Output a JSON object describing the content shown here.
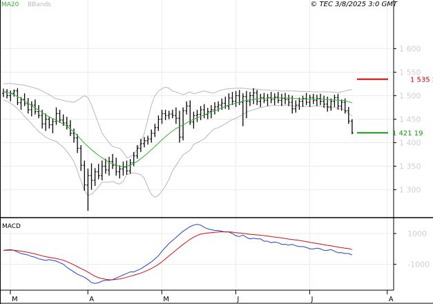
{
  "legend": {
    "ma": "MA20",
    "bbands": "BBands",
    "ma_color": "#2db52d",
    "bbands_color": "#b8b8b8"
  },
  "timestamp": "© TEC 3/8/2025 3:0 GMT",
  "resistance": {
    "label": "1 535 2",
    "value": 1535,
    "color": "#d00000"
  },
  "support": {
    "label": "1 421 19",
    "value": 1421,
    "color": "#119911"
  },
  "macd_title": "MACD",
  "chart_data": [
    {
      "type": "line",
      "panel": "price",
      "ylim": [
        1245,
        1680
      ],
      "yticks": [
        1300,
        1350,
        1400,
        1450,
        1500,
        1550,
        1600
      ],
      "ytick_labels": [
        "1 300",
        "1 350",
        "1 400",
        "1 450",
        "1 500",
        "1 550",
        "1 600"
      ],
      "xticks": [
        {
          "label": "M",
          "index": 0
        },
        {
          "label": "A",
          "index": 22
        },
        {
          "label": "M",
          "index": 43
        },
        {
          "label": "J",
          "index": 64
        },
        {
          "label": "J",
          "index": 85
        },
        {
          "label": "A",
          "index": 107
        }
      ],
      "ohlc": [
        [
          1505,
          1515,
          1497,
          1508
        ],
        [
          1508,
          1514,
          1494,
          1500
        ],
        [
          1500,
          1511,
          1488,
          1505
        ],
        [
          1505,
          1513,
          1498,
          1510
        ],
        [
          1510,
          1516,
          1480,
          1485
        ],
        [
          1485,
          1497,
          1470,
          1492
        ],
        [
          1492,
          1505,
          1478,
          1483
        ],
        [
          1483,
          1495,
          1462,
          1470
        ],
        [
          1470,
          1488,
          1456,
          1480
        ],
        [
          1480,
          1492,
          1460,
          1466
        ],
        [
          1466,
          1480,
          1452,
          1458
        ],
        [
          1458,
          1470,
          1430,
          1440
        ],
        [
          1440,
          1462,
          1425,
          1450
        ],
        [
          1450,
          1456,
          1430,
          1438
        ],
        [
          1438,
          1452,
          1420,
          1445
        ],
        [
          1445,
          1475,
          1438,
          1462
        ],
        [
          1462,
          1470,
          1442,
          1448
        ],
        [
          1448,
          1460,
          1436,
          1442
        ],
        [
          1442,
          1455,
          1428,
          1436
        ],
        [
          1436,
          1448,
          1414,
          1420
        ],
        [
          1420,
          1430,
          1400,
          1410
        ],
        [
          1410,
          1418,
          1378,
          1388
        ],
        [
          1388,
          1395,
          1340,
          1352
        ],
        [
          1352,
          1362,
          1298,
          1310
        ],
        [
          1310,
          1345,
          1255,
          1330
        ],
        [
          1330,
          1356,
          1300,
          1320
        ],
        [
          1320,
          1346,
          1308,
          1338
        ],
        [
          1338,
          1355,
          1322,
          1330
        ],
        [
          1330,
          1362,
          1320,
          1350
        ],
        [
          1350,
          1366,
          1334,
          1342
        ],
        [
          1342,
          1370,
          1330,
          1360
        ],
        [
          1360,
          1376,
          1344,
          1352
        ],
        [
          1352,
          1368,
          1330,
          1338
        ],
        [
          1338,
          1352,
          1324,
          1344
        ],
        [
          1344,
          1360,
          1330,
          1348
        ],
        [
          1348,
          1362,
          1332,
          1340
        ],
        [
          1340,
          1365,
          1334,
          1357
        ],
        [
          1357,
          1380,
          1350,
          1372
        ],
        [
          1372,
          1395,
          1366,
          1388
        ],
        [
          1388,
          1408,
          1380,
          1398
        ],
        [
          1398,
          1412,
          1390,
          1404
        ],
        [
          1404,
          1415,
          1396,
          1408
        ],
        [
          1408,
          1428,
          1400,
          1420
        ],
        [
          1420,
          1440,
          1412,
          1432
        ],
        [
          1432,
          1458,
          1425,
          1450
        ],
        [
          1450,
          1470,
          1440,
          1462
        ],
        [
          1462,
          1470,
          1448,
          1458
        ],
        [
          1458,
          1468,
          1450,
          1461
        ],
        [
          1461,
          1470,
          1452,
          1458
        ],
        [
          1458,
          1475,
          1440,
          1452
        ],
        [
          1452,
          1468,
          1400,
          1412
        ],
        [
          1412,
          1475,
          1405,
          1468
        ],
        [
          1468,
          1488,
          1460,
          1478
        ],
        [
          1478,
          1490,
          1438,
          1444
        ],
        [
          1444,
          1466,
          1430,
          1458
        ],
        [
          1458,
          1470,
          1444,
          1460
        ],
        [
          1460,
          1478,
          1448,
          1470
        ],
        [
          1470,
          1482,
          1452,
          1460
        ],
        [
          1460,
          1474,
          1450,
          1466
        ],
        [
          1466,
          1480,
          1452,
          1470
        ],
        [
          1470,
          1486,
          1460,
          1476
        ],
        [
          1476,
          1488,
          1466,
          1480
        ],
        [
          1480,
          1494,
          1470,
          1484
        ],
        [
          1484,
          1498,
          1472,
          1478
        ],
        [
          1478,
          1505,
          1470,
          1495
        ],
        [
          1495,
          1508,
          1480,
          1488
        ],
        [
          1488,
          1510,
          1476,
          1500
        ],
        [
          1500,
          1512,
          1480,
          1486
        ],
        [
          1486,
          1505,
          1435,
          1498
        ],
        [
          1498,
          1510,
          1452,
          1488
        ],
        [
          1488,
          1508,
          1478,
          1500
        ],
        [
          1500,
          1516,
          1482,
          1506
        ],
        [
          1506,
          1512,
          1480,
          1488
        ],
        [
          1488,
          1504,
          1476,
          1496
        ],
        [
          1496,
          1506,
          1484,
          1490
        ],
        [
          1490,
          1504,
          1478,
          1496
        ],
        [
          1496,
          1508,
          1484,
          1492
        ],
        [
          1492,
          1505,
          1480,
          1497
        ],
        [
          1497,
          1508,
          1484,
          1490
        ],
        [
          1490,
          1504,
          1478,
          1494
        ],
        [
          1494,
          1506,
          1482,
          1492
        ],
        [
          1492,
          1502,
          1478,
          1486
        ],
        [
          1486,
          1500,
          1462,
          1472
        ],
        [
          1472,
          1490,
          1464,
          1480
        ],
        [
          1480,
          1496,
          1470,
          1488
        ],
        [
          1488,
          1500,
          1476,
          1494
        ],
        [
          1494,
          1506,
          1480,
          1486
        ],
        [
          1486,
          1502,
          1476,
          1496
        ],
        [
          1496,
          1504,
          1482,
          1490
        ],
        [
          1490,
          1502,
          1478,
          1494
        ],
        [
          1494,
          1504,
          1480,
          1488
        ],
        [
          1488,
          1500,
          1474,
          1482
        ],
        [
          1482,
          1498,
          1466,
          1476
        ],
        [
          1476,
          1494,
          1468,
          1488
        ],
        [
          1488,
          1502,
          1476,
          1496
        ],
        [
          1496,
          1504,
          1470,
          1478
        ],
        [
          1478,
          1492,
          1468,
          1486
        ],
        [
          1486,
          1494,
          1462,
          1468
        ],
        [
          1468,
          1476,
          1440,
          1446
        ],
        [
          1446,
          1450,
          1418,
          1421
        ]
      ],
      "ma20": [
        1508,
        1507,
        1505,
        1502,
        1498,
        1494,
        1489,
        1484,
        1479,
        1474,
        1469,
        1464,
        1459,
        1455,
        1451,
        1448,
        1444,
        1440,
        1435,
        1429,
        1423,
        1415,
        1407,
        1399,
        1392,
        1385,
        1379,
        1373,
        1368,
        1363,
        1358,
        1355,
        1352,
        1350,
        1349,
        1350,
        1352,
        1356,
        1360,
        1366,
        1372,
        1378,
        1385,
        1392,
        1399,
        1406,
        1413,
        1419,
        1425,
        1430,
        1434,
        1438,
        1442,
        1446,
        1450,
        1453,
        1456,
        1459,
        1462,
        1465,
        1468,
        1471,
        1474,
        1477,
        1480,
        1482,
        1484,
        1486,
        1488,
        1490,
        1491,
        1492,
        1493,
        1494,
        1494,
        1495,
        1495,
        1495,
        1495,
        1495,
        1495,
        1495,
        1494,
        1494,
        1493,
        1493,
        1493,
        1493,
        1493,
        1493,
        1493,
        1492,
        1492,
        1491,
        1491,
        1490,
        1490,
        1489,
        1487,
        1485
      ],
      "bb_upper": [
        1525,
        1526,
        1526,
        1525,
        1524,
        1523,
        1522,
        1520,
        1518,
        1516,
        1514,
        1510,
        1506,
        1502,
        1497,
        1493,
        1492,
        1490,
        1488,
        1487,
        1486,
        1490,
        1495,
        1500,
        1496,
        1480,
        1460,
        1440,
        1420,
        1410,
        1400,
        1392,
        1390,
        1388,
        1380,
        1368,
        1370,
        1376,
        1386,
        1400,
        1420,
        1450,
        1480,
        1500,
        1510,
        1515,
        1518,
        1516,
        1510,
        1508,
        1505,
        1502,
        1505,
        1508,
        1504,
        1506,
        1508,
        1510,
        1508,
        1506,
        1506,
        1510,
        1512,
        1514,
        1515,
        1515,
        1516,
        1516,
        1516,
        1515,
        1514,
        1514,
        1514,
        1513,
        1512,
        1512,
        1511,
        1511,
        1511,
        1510,
        1510,
        1510,
        1510,
        1510,
        1509,
        1509,
        1509,
        1509,
        1508,
        1508,
        1508,
        1508,
        1508,
        1508,
        1507,
        1507,
        1508,
        1510,
        1512,
        1513
      ],
      "bb_lower": [
        1491,
        1488,
        1484,
        1479,
        1472,
        1465,
        1456,
        1448,
        1440,
        1432,
        1424,
        1418,
        1412,
        1408,
        1405,
        1403,
        1396,
        1390,
        1382,
        1371,
        1360,
        1340,
        1319,
        1298,
        1288,
        1290,
        1298,
        1306,
        1316,
        1316,
        1316,
        1318,
        1314,
        1312,
        1318,
        1332,
        1334,
        1336,
        1334,
        1332,
        1324,
        1306,
        1290,
        1284,
        1288,
        1297,
        1308,
        1322,
        1340,
        1352,
        1363,
        1374,
        1379,
        1384,
        1396,
        1400,
        1404,
        1408,
        1416,
        1424,
        1430,
        1432,
        1436,
        1440,
        1445,
        1449,
        1452,
        1456,
        1460,
        1465,
        1468,
        1470,
        1472,
        1475,
        1476,
        1478,
        1479,
        1479,
        1479,
        1480,
        1480,
        1480,
        1478,
        1478,
        1477,
        1477,
        1477,
        1477,
        1478,
        1478,
        1478,
        1476,
        1476,
        1474,
        1475,
        1473,
        1472,
        1468,
        1462,
        1457
      ]
    },
    {
      "type": "line",
      "panel": "macd",
      "ylim": [
        -2600,
        1900
      ],
      "yticks": [
        1000,
        -1000
      ],
      "ytick_labels": [
        "1000",
        "-1000"
      ],
      "series": [
        {
          "name": "macd",
          "color": "#1f3fd0",
          "values": [
            -100,
            -60,
            -50,
            -100,
            -200,
            -300,
            -350,
            -400,
            -500,
            -550,
            -650,
            -700,
            -750,
            -700,
            -750,
            -800,
            -900,
            -1000,
            -1200,
            -1350,
            -1500,
            -1650,
            -1750,
            -1850,
            -2000,
            -2200,
            -2250,
            -2200,
            -2100,
            -2050,
            -2050,
            -2000,
            -1900,
            -1800,
            -1700,
            -1600,
            -1500,
            -1500,
            -1400,
            -1300,
            -1150,
            -1000,
            -850,
            -650,
            -450,
            -150,
            100,
            350,
            550,
            750,
            950,
            1150,
            1300,
            1450,
            1550,
            1600,
            1550,
            1400,
            1300,
            1250,
            1200,
            1200,
            1150,
            1100,
            1100,
            1000,
            850,
            800,
            900,
            750,
            650,
            700,
            650,
            650,
            500,
            500,
            400,
            450,
            400,
            300,
            300,
            250,
            300,
            200,
            150,
            150,
            100,
            0,
            0,
            50,
            0,
            -100,
            -100,
            -50,
            -150,
            -250,
            -250,
            -300,
            -300,
            -400
          ]
        },
        {
          "name": "signal",
          "color": "#cc1111",
          "values": [
            -100,
            -90,
            -80,
            -90,
            -110,
            -150,
            -190,
            -230,
            -280,
            -330,
            -390,
            -450,
            -510,
            -550,
            -590,
            -630,
            -680,
            -740,
            -830,
            -930,
            -1040,
            -1160,
            -1280,
            -1390,
            -1510,
            -1650,
            -1780,
            -1880,
            -1940,
            -1980,
            -2010,
            -2010,
            -1990,
            -1960,
            -1910,
            -1850,
            -1780,
            -1720,
            -1650,
            -1580,
            -1490,
            -1390,
            -1280,
            -1150,
            -1010,
            -840,
            -650,
            -460,
            -270,
            -80,
            110,
            290,
            460,
            620,
            760,
            880,
            960,
            1000,
            1030,
            1060,
            1080,
            1100,
            1110,
            1110,
            1110,
            1090,
            1060,
            1030,
            1010,
            980,
            950,
            930,
            910,
            890,
            860,
            830,
            800,
            770,
            740,
            710,
            670,
            640,
            610,
            580,
            550,
            510,
            470,
            430,
            390,
            350,
            310,
            270,
            230,
            200,
            160,
            120,
            80,
            40,
            20,
            -50
          ]
        }
      ]
    }
  ]
}
